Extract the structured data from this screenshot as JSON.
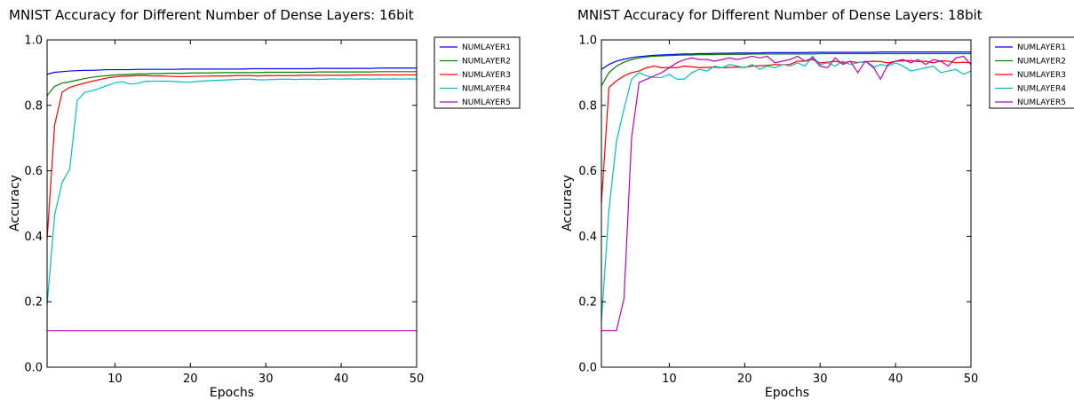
{
  "chart_data": [
    {
      "type": "line",
      "title": "MNIST Accuracy for Different Number of Dense Layers: 16bit",
      "xlabel": "Epochs",
      "ylabel": "Accuracy",
      "xlim": [
        1,
        50
      ],
      "ylim": [
        0.0,
        1.0
      ],
      "xticks": [
        "10",
        "20",
        "30",
        "40",
        "50"
      ],
      "yticks": [
        "0.0",
        "0.2",
        "0.4",
        "0.6",
        "0.8",
        "1.0"
      ],
      "grid": false,
      "legend_position": "outside-right",
      "series": [
        {
          "name": "NUMLAYER1",
          "color": "#0000ff",
          "values": [
            0.895,
            0.901,
            0.903,
            0.905,
            0.906,
            0.907,
            0.907,
            0.908,
            0.909,
            0.909,
            0.909,
            0.909,
            0.91,
            0.91,
            0.91,
            0.91,
            0.91,
            0.91,
            0.911,
            0.911,
            0.911,
            0.911,
            0.911,
            0.911,
            0.911,
            0.911,
            0.911,
            0.912,
            0.912,
            0.912,
            0.912,
            0.912,
            0.912,
            0.912,
            0.912,
            0.912,
            0.913,
            0.913,
            0.913,
            0.913,
            0.913,
            0.913,
            0.913,
            0.913,
            0.914,
            0.914,
            0.914,
            0.914,
            0.914,
            0.914
          ]
        },
        {
          "name": "NUMLAYER2",
          "color": "#008000",
          "values": [
            0.83,
            0.858,
            0.868,
            0.872,
            0.877,
            0.882,
            0.886,
            0.889,
            0.891,
            0.893,
            0.894,
            0.895,
            0.896,
            0.896,
            0.897,
            0.897,
            0.898,
            0.898,
            0.898,
            0.899,
            0.899,
            0.899,
            0.899,
            0.9,
            0.9,
            0.9,
            0.9,
            0.9,
            0.9,
            0.901,
            0.901,
            0.901,
            0.901,
            0.901,
            0.901,
            0.901,
            0.902,
            0.902,
            0.902,
            0.902,
            0.902,
            0.902,
            0.902,
            0.902,
            0.903,
            0.903,
            0.903,
            0.903,
            0.903,
            0.903
          ]
        },
        {
          "name": "NUMLAYER3",
          "color": "#ff0000",
          "values": [
            0.39,
            0.74,
            0.84,
            0.855,
            0.862,
            0.868,
            0.874,
            0.879,
            0.884,
            0.887,
            0.889,
            0.89,
            0.891,
            0.891,
            0.89,
            0.89,
            0.889,
            0.888,
            0.888,
            0.888,
            0.889,
            0.889,
            0.89,
            0.89,
            0.89,
            0.891,
            0.891,
            0.891,
            0.89,
            0.891,
            0.891,
            0.891,
            0.891,
            0.891,
            0.892,
            0.892,
            0.892,
            0.892,
            0.892,
            0.892,
            0.892,
            0.893,
            0.893,
            0.893,
            0.893,
            0.893,
            0.893,
            0.893,
            0.893,
            0.893
          ]
        },
        {
          "name": "NUMLAYER4",
          "color": "#00bfbf",
          "values": [
            0.19,
            0.465,
            0.565,
            0.605,
            0.815,
            0.84,
            0.845,
            0.852,
            0.861,
            0.869,
            0.872,
            0.865,
            0.867,
            0.873,
            0.874,
            0.874,
            0.874,
            0.873,
            0.871,
            0.871,
            0.873,
            0.875,
            0.876,
            0.877,
            0.878,
            0.879,
            0.88,
            0.88,
            0.878,
            0.878,
            0.879,
            0.88,
            0.88,
            0.879,
            0.88,
            0.88,
            0.879,
            0.88,
            0.881,
            0.88,
            0.881,
            0.88,
            0.881,
            0.88,
            0.881,
            0.88,
            0.881,
            0.88,
            0.881,
            0.88
          ]
        },
        {
          "name": "NUMLAYER5",
          "color": "#bf00bf",
          "values": [
            0.112,
            0.112,
            0.112,
            0.112,
            0.112,
            0.112,
            0.112,
            0.112,
            0.112,
            0.112,
            0.112,
            0.112,
            0.112,
            0.112,
            0.112,
            0.112,
            0.112,
            0.112,
            0.112,
            0.112,
            0.112,
            0.112,
            0.112,
            0.112,
            0.112,
            0.112,
            0.112,
            0.112,
            0.112,
            0.112,
            0.112,
            0.112,
            0.112,
            0.112,
            0.112,
            0.112,
            0.112,
            0.112,
            0.112,
            0.112,
            0.112,
            0.112,
            0.112,
            0.112,
            0.112,
            0.112,
            0.112,
            0.112,
            0.112,
            0.112
          ]
        }
      ]
    },
    {
      "type": "line",
      "title": "MNIST Accuracy for Different Number of Dense Layers: 18bit",
      "xlabel": "Epochs",
      "ylabel": "Accuracy",
      "xlim": [
        1,
        50
      ],
      "ylim": [
        0.0,
        1.0
      ],
      "xticks": [
        "10",
        "20",
        "30",
        "40",
        "50"
      ],
      "yticks": [
        "0.0",
        "0.2",
        "0.4",
        "0.6",
        "0.8",
        "1.0"
      ],
      "grid": false,
      "legend_position": "outside-right",
      "series": [
        {
          "name": "NUMLAYER1",
          "color": "#0000ff",
          "values": [
            0.91,
            0.925,
            0.935,
            0.941,
            0.946,
            0.949,
            0.951,
            0.953,
            0.954,
            0.955,
            0.956,
            0.957,
            0.957,
            0.958,
            0.958,
            0.959,
            0.959,
            0.959,
            0.96,
            0.96,
            0.96,
            0.96,
            0.961,
            0.961,
            0.961,
            0.961,
            0.961,
            0.961,
            0.962,
            0.962,
            0.962,
            0.962,
            0.962,
            0.962,
            0.962,
            0.962,
            0.962,
            0.963,
            0.963,
            0.963,
            0.963,
            0.963,
            0.963,
            0.963,
            0.963,
            0.963,
            0.963,
            0.963,
            0.963,
            0.963
          ]
        },
        {
          "name": "NUMLAYER2",
          "color": "#008000",
          "values": [
            0.86,
            0.9,
            0.92,
            0.932,
            0.94,
            0.945,
            0.948,
            0.95,
            0.951,
            0.952,
            0.953,
            0.954,
            0.954,
            0.955,
            0.955,
            0.955,
            0.956,
            0.956,
            0.956,
            0.956,
            0.957,
            0.957,
            0.957,
            0.957,
            0.957,
            0.957,
            0.957,
            0.957,
            0.957,
            0.958,
            0.958,
            0.958,
            0.958,
            0.958,
            0.958,
            0.958,
            0.958,
            0.958,
            0.958,
            0.958,
            0.958,
            0.958,
            0.958,
            0.958,
            0.958,
            0.958,
            0.958,
            0.958,
            0.958,
            0.958
          ]
        },
        {
          "name": "NUMLAYER3",
          "color": "#ff0000",
          "values": [
            0.5,
            0.855,
            0.875,
            0.89,
            0.9,
            0.905,
            0.915,
            0.92,
            0.915,
            0.916,
            0.915,
            0.92,
            0.918,
            0.915,
            0.916,
            0.917,
            0.915,
            0.916,
            0.917,
            0.916,
            0.92,
            0.921,
            0.922,
            0.925,
            0.924,
            0.925,
            0.935,
            0.935,
            0.94,
            0.93,
            0.932,
            0.935,
            0.93,
            0.934,
            0.931,
            0.933,
            0.935,
            0.934,
            0.93,
            0.935,
            0.936,
            0.937,
            0.934,
            0.935,
            0.93,
            0.936,
            0.935,
            0.93,
            0.932,
            0.93
          ]
        },
        {
          "name": "NUMLAYER4",
          "color": "#00bfbf",
          "values": [
            0.14,
            0.48,
            0.69,
            0.79,
            0.88,
            0.9,
            0.89,
            0.885,
            0.885,
            0.895,
            0.88,
            0.88,
            0.9,
            0.91,
            0.905,
            0.92,
            0.915,
            0.925,
            0.92,
            0.915,
            0.925,
            0.91,
            0.92,
            0.915,
            0.925,
            0.92,
            0.93,
            0.92,
            0.95,
            0.925,
            0.93,
            0.92,
            0.935,
            0.925,
            0.93,
            0.935,
            0.915,
            0.925,
            0.92,
            0.93,
            0.92,
            0.905,
            0.91,
            0.915,
            0.92,
            0.9,
            0.905,
            0.91,
            0.895,
            0.905
          ]
        },
        {
          "name": "NUMLAYER5",
          "color": "#bf00bf",
          "values": [
            0.112,
            0.112,
            0.112,
            0.21,
            0.7,
            0.87,
            0.88,
            0.89,
            0.9,
            0.915,
            0.93,
            0.94,
            0.945,
            0.94,
            0.94,
            0.935,
            0.94,
            0.945,
            0.94,
            0.945,
            0.95,
            0.945,
            0.95,
            0.93,
            0.935,
            0.94,
            0.95,
            0.935,
            0.945,
            0.92,
            0.915,
            0.945,
            0.925,
            0.935,
            0.9,
            0.935,
            0.92,
            0.88,
            0.925,
            0.935,
            0.94,
            0.93,
            0.94,
            0.925,
            0.94,
            0.935,
            0.92,
            0.945,
            0.95,
            0.925
          ]
        }
      ]
    }
  ]
}
